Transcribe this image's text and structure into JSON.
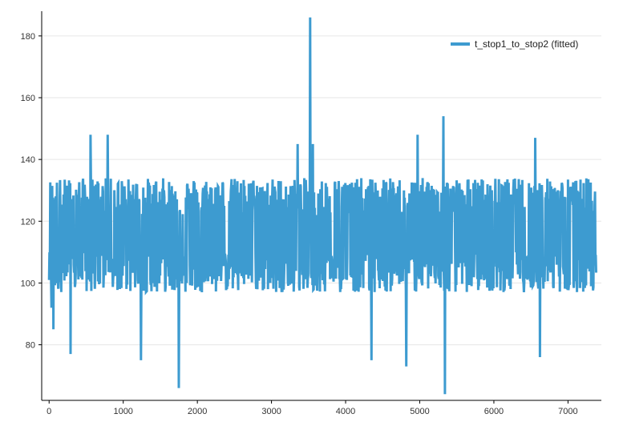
{
  "chart_data": {
    "type": "line",
    "title": "",
    "xlabel": "",
    "ylabel": "",
    "xlim": [
      -100,
      7450
    ],
    "ylim": [
      62,
      188
    ],
    "x_ticks": [
      0,
      1000,
      2000,
      3000,
      4000,
      5000,
      6000,
      7000
    ],
    "y_ticks": [
      80,
      100,
      120,
      140,
      160,
      180
    ],
    "grid": {
      "horizontal": true,
      "vertical": false
    },
    "legend_position": "top-right",
    "series": [
      {
        "name": "t_stop1_to_stop2 (fitted)",
        "color": "#3d9bd0",
        "x_range": [
          0,
          7380
        ],
        "base_level": 115,
        "typical_low": 100,
        "typical_high": 132,
        "peaks": [
          {
            "x": 30,
            "y": 92
          },
          {
            "x": 60,
            "y": 85
          },
          {
            "x": 290,
            "y": 77
          },
          {
            "x": 560,
            "y": 148
          },
          {
            "x": 790,
            "y": 148
          },
          {
            "x": 1240,
            "y": 75
          },
          {
            "x": 1750,
            "y": 66
          },
          {
            "x": 2850,
            "y": 130
          },
          {
            "x": 3350,
            "y": 145
          },
          {
            "x": 3520,
            "y": 186
          },
          {
            "x": 3560,
            "y": 145
          },
          {
            "x": 4350,
            "y": 75
          },
          {
            "x": 4820,
            "y": 73
          },
          {
            "x": 4970,
            "y": 148
          },
          {
            "x": 5320,
            "y": 154
          },
          {
            "x": 5340,
            "y": 64
          },
          {
            "x": 6560,
            "y": 147
          },
          {
            "x": 6620,
            "y": 76
          },
          {
            "x": 7360,
            "y": 125
          }
        ]
      }
    ]
  }
}
